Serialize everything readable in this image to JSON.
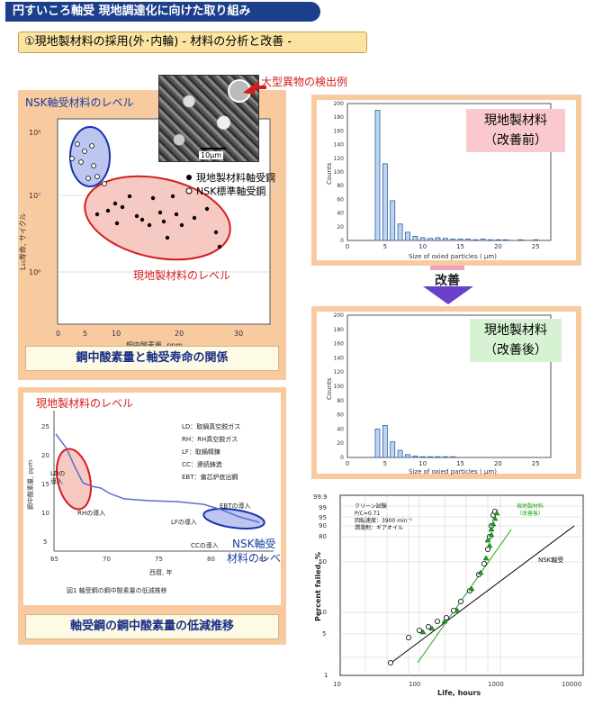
{
  "header": {
    "title": "円すいころ軸受 現地調達化に向けた取り組み",
    "subtitle": "①現地製材料の採用(外･内輪) - 材料の分析と改善 -"
  },
  "panel1": {
    "y_axis_label": "L₁₀寿命, サイクル",
    "y_ticks": [
      "10⁸",
      "10⁷",
      "10⁶"
    ],
    "x_axis_label": "鋼中酸素量, ppm",
    "x_ticks": [
      "0",
      "5",
      "10",
      "20",
      "30"
    ],
    "nsk_level_label": "NSK軸受材料のレベル",
    "local_level_label": "現地製材料のレベル",
    "legend_local": "現地製材料軸受鋼",
    "legend_nsk": "NSK標準軸受鋼",
    "inclusion_label": "大型異物の検出例",
    "scale_label": "10μm",
    "caption": "鋼中酸素量と軸受寿命の関係"
  },
  "panel2": {
    "y_axis_label": "鋼中酸素量, ppm",
    "y_ticks": [
      "25",
      "20",
      "15",
      "10",
      "5"
    ],
    "x_axis_label": "西暦, 年",
    "x_ticks": [
      "65",
      "70",
      "75",
      "80",
      "85"
    ],
    "local_level_label": "現地製材料のレベル",
    "nsk_level_label_1": "NSK軸受",
    "nsk_level_label_2": "材料のレベル",
    "legend": [
      "LD：取鍋真空脱ガス",
      "RH：RH真空脱ガス",
      "LF：取鍋精錬",
      "CC：連続鋳造",
      "EBT：偏芯炉底出鋼"
    ],
    "annotations": [
      "LDの",
      "導入",
      "RHの導入",
      "LFの導入",
      "CCの導入",
      "EBTの導入"
    ],
    "figure_caption": "図1 軸受鋼の鋼中酸素量の低減推移",
    "caption": "軸受鋼の鋼中酸素量の低減推移"
  },
  "chart_before": {
    "label_line1": "現地製材料",
    "label_line2": "（改善前）",
    "ylabel": "Counts",
    "xlabel": "Size of oxied particles ( μm)",
    "y_ticks": [
      "200",
      "180",
      "160",
      "140",
      "120",
      "100",
      "80",
      "60",
      "40",
      "20",
      "0"
    ],
    "x_ticks": [
      "0",
      "5",
      "10",
      "15",
      "20",
      "25"
    ]
  },
  "arrow_label": "改善",
  "chart_after": {
    "label_line1": "現地製材料",
    "label_line2": "（改善後）",
    "ylabel": "Counts",
    "xlabel": "Size of oxied particles ( μm)",
    "y_ticks": [
      "200",
      "180",
      "160",
      "140",
      "120",
      "100",
      "80",
      "60",
      "40",
      "20",
      "0"
    ],
    "x_ticks": [
      "0",
      "5",
      "10",
      "15",
      "20",
      "25"
    ]
  },
  "weibull": {
    "ylabel": "Percent failed, %",
    "xlabel": "Life, hours",
    "y_ticks": [
      "99.9",
      "99",
      "95",
      "90",
      "80",
      "50",
      "10",
      "5",
      "1"
    ],
    "x_ticks": [
      "10",
      "100",
      "1000",
      "10000"
    ],
    "info": [
      "クリーン試験",
      "P/C=0.71",
      "回転速度：3900 min⁻¹",
      "潤滑剤：ギアオイル"
    ],
    "legend_local": "現地製材料",
    "legend_local_sub": "（改善後）",
    "nsk_label": "NSK軸受"
  },
  "chart_data": [
    {
      "type": "bar",
      "xlabel": "Size of oxied particles ( μm)",
      "ylabel": "Counts",
      "ylim": [
        0,
        200
      ],
      "xlim": [
        0,
        27
      ],
      "x": [
        4,
        5,
        6,
        7,
        8,
        9,
        10,
        11,
        12,
        13,
        14,
        15,
        16,
        17,
        18,
        19,
        20,
        21,
        22,
        23,
        24,
        25
      ],
      "values": [
        190,
        112,
        58,
        24,
        12,
        6,
        4,
        3,
        4,
        3,
        2,
        2,
        2,
        1,
        2,
        1,
        1,
        1,
        0,
        1,
        0,
        1
      ]
    },
    {
      "type": "bar",
      "xlabel": "Size of oxied particles ( μm)",
      "ylabel": "Counts",
      "ylim": [
        0,
        200
      ],
      "xlim": [
        0,
        27
      ],
      "x": [
        4,
        5,
        6,
        7,
        8,
        9,
        10,
        11,
        12,
        13,
        14
      ],
      "values": [
        40,
        45,
        22,
        10,
        4,
        2,
        1,
        1,
        1,
        1,
        1
      ]
    }
  ]
}
